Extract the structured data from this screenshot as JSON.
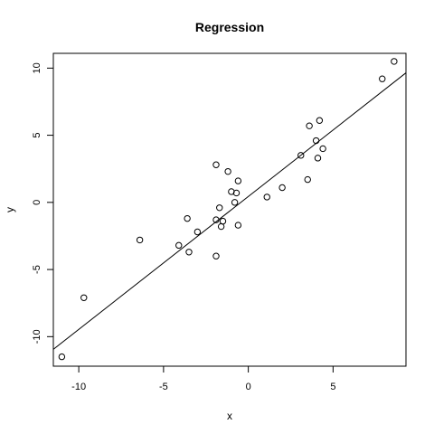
{
  "chart_data": {
    "type": "scatter",
    "title": "Regression",
    "xlabel": "x",
    "ylabel": "y",
    "xlim": [
      -11.5,
      9.3
    ],
    "ylim": [
      -12.2,
      11.1
    ],
    "x_ticks": [
      -10,
      -5,
      0,
      5
    ],
    "y_ticks": [
      -10,
      -5,
      0,
      5,
      10
    ],
    "grid": false,
    "points": [
      {
        "x": -11.0,
        "y": -11.5
      },
      {
        "x": -9.7,
        "y": -7.1
      },
      {
        "x": -6.4,
        "y": -2.8
      },
      {
        "x": -4.1,
        "y": -3.2
      },
      {
        "x": -3.6,
        "y": -1.2
      },
      {
        "x": -3.5,
        "y": -3.7
      },
      {
        "x": -3.0,
        "y": -2.2
      },
      {
        "x": -1.9,
        "y": -4.0
      },
      {
        "x": -1.9,
        "y": 2.8
      },
      {
        "x": -1.9,
        "y": -1.3
      },
      {
        "x": -1.7,
        "y": -0.4
      },
      {
        "x": -1.6,
        "y": -1.8
      },
      {
        "x": -1.5,
        "y": -1.4
      },
      {
        "x": -1.2,
        "y": 2.3
      },
      {
        "x": -1.0,
        "y": 0.8
      },
      {
        "x": -0.8,
        "y": 0.0
      },
      {
        "x": -0.7,
        "y": 0.7
      },
      {
        "x": -0.6,
        "y": 1.6
      },
      {
        "x": -0.6,
        "y": -1.7
      },
      {
        "x": 1.1,
        "y": 0.4
      },
      {
        "x": 2.0,
        "y": 1.1
      },
      {
        "x": 3.1,
        "y": 3.5
      },
      {
        "x": 3.5,
        "y": 1.7
      },
      {
        "x": 3.6,
        "y": 5.7
      },
      {
        "x": 4.0,
        "y": 4.6
      },
      {
        "x": 4.1,
        "y": 3.3
      },
      {
        "x": 4.2,
        "y": 6.1
      },
      {
        "x": 4.4,
        "y": 4.0
      },
      {
        "x": 7.9,
        "y": 9.2
      },
      {
        "x": 8.6,
        "y": 10.5
      }
    ],
    "regression_line": {
      "intercept": 0.44,
      "slope": 0.99
    }
  }
}
